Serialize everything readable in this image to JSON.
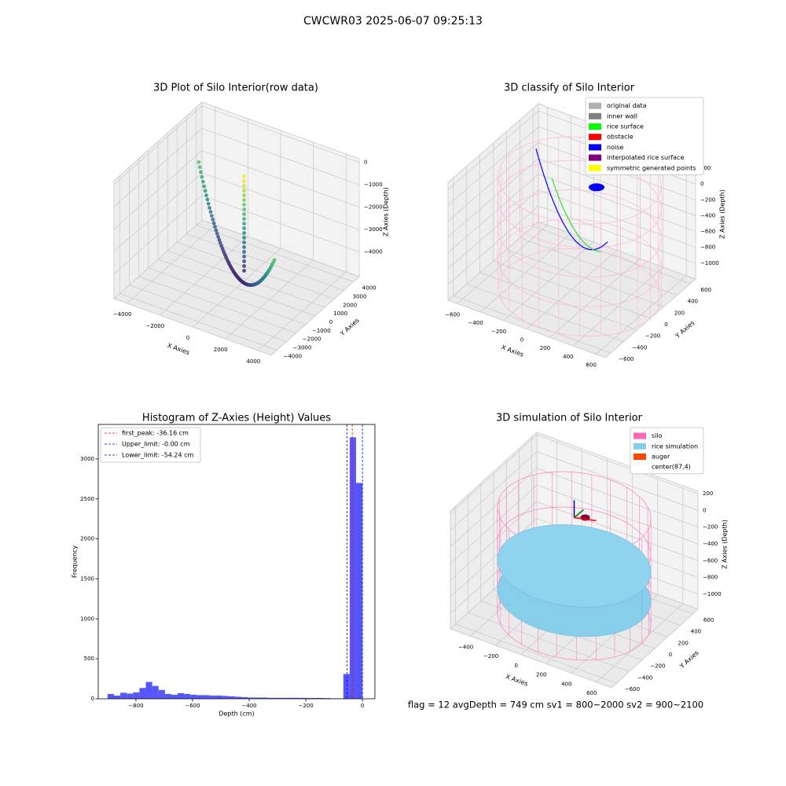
{
  "title": "CWCWR03 2025-06-07 09:25:13",
  "footer": "flag = 12  avgDepth = 749 cm  sv1 = 800~2000  sv2 = 900~2100",
  "chart_data": [
    {
      "type": "scatter3d",
      "title": "3D Plot of Silo Interior(row data)",
      "xlabel": "X Axies",
      "ylabel": "Y Axies",
      "zlabel": "Z Axies (Depth)",
      "xlim": [
        -4800,
        4800
      ],
      "ylim": [
        -4600,
        4600
      ],
      "zlim": [
        -5100,
        160
      ],
      "xticks": [
        {
          "value": -4000,
          "label": "−4000"
        },
        {
          "value": -2000,
          "label": "−2000"
        },
        0,
        2000,
        4000
      ],
      "yticks": [
        {
          "value": -4000,
          "label": "−4000"
        },
        {
          "value": -3000,
          "label": "−3000"
        },
        {
          "value": -2000,
          "label": "−2000"
        },
        {
          "value": -1000,
          "label": "−1000"
        },
        0,
        1000,
        2000,
        3000,
        4000
      ],
      "zticks": [
        {
          "value": -4000,
          "label": "−4000"
        },
        {
          "value": -3000,
          "label": "−3000"
        },
        {
          "value": -2000,
          "label": "−2000"
        },
        {
          "value": -1000,
          "label": "−1000"
        },
        0
      ]
    },
    {
      "type": "scatter3d",
      "title": "3D classify of Silo Interior",
      "xlabel": "X Axies",
      "ylabel": "Y Axies",
      "zlabel": "Z Axies (Depth)",
      "xlim": [
        -680,
        680
      ],
      "ylim": [
        -680,
        680
      ],
      "zlim": [
        -1200,
        290
      ],
      "xticks": [
        {
          "value": -600,
          "label": "−600"
        },
        {
          "value": -400,
          "label": "−400"
        },
        {
          "value": -200,
          "label": "−200"
        },
        0,
        200,
        400,
        600
      ],
      "yticks": [
        {
          "value": -600,
          "label": "−600"
        },
        {
          "value": -400,
          "label": "−400"
        },
        {
          "value": -200,
          "label": "−200"
        },
        0,
        200,
        400,
        600
      ],
      "zticks": [
        {
          "value": -1000,
          "label": "−1000"
        },
        {
          "value": -800,
          "label": "−800"
        },
        {
          "value": -600,
          "label": "−600"
        },
        {
          "value": -400,
          "label": "−400"
        },
        {
          "value": -200,
          "label": "−200"
        },
        0,
        200
      ],
      "series": [
        {
          "name": "original data",
          "color": "#b0b0b0"
        },
        {
          "name": "inner wall",
          "color": "#808080"
        },
        {
          "name": "rice surface",
          "color": "#00ff00"
        },
        {
          "name": "obstacle",
          "color": "#ff0000"
        },
        {
          "name": "noise",
          "color": "#0000ff"
        },
        {
          "name": "interpolated rice surface",
          "color": "#800080"
        },
        {
          "name": "symmetric generated points",
          "color": "#ffff00"
        }
      ]
    },
    {
      "type": "histogram",
      "title": "Histogram of Z-Axies (Height) Values",
      "xlabel": "Depth (cm)",
      "ylabel": "Frequency",
      "color": "#4d4dff",
      "bins": [
        -900,
        -877.5,
        -855,
        -832.5,
        -810,
        -787.5,
        -765,
        -742.5,
        -720,
        -697.5,
        -675,
        -652.5,
        -630,
        -607.5,
        -585,
        -562.5,
        -540,
        -517.5,
        -495,
        -472.5,
        -450,
        -427.5,
        -405,
        -382.5,
        -360,
        -337.5,
        -315,
        -292.5,
        -270,
        -247.5,
        -225,
        -202.5,
        -180,
        -157.5,
        -135,
        -112.5,
        -90,
        -67.5,
        -45,
        -22.5,
        0
      ],
      "values": [
        60,
        40,
        75,
        65,
        80,
        135,
        210,
        160,
        110,
        60,
        50,
        70,
        60,
        50,
        45,
        45,
        40,
        40,
        35,
        30,
        25,
        20,
        15,
        15,
        15,
        12,
        12,
        12,
        12,
        12,
        12,
        10,
        10,
        10,
        8,
        5,
        3,
        310,
        3270,
        2700
      ],
      "xlim": [
        -933,
        44
      ],
      "ylim": [
        0,
        3432
      ],
      "xticks": [
        {
          "value": -800,
          "label": "−800"
        },
        {
          "value": -600,
          "label": "−600"
        },
        {
          "value": -400,
          "label": "−400"
        },
        {
          "value": -200,
          "label": "−200"
        },
        0
      ],
      "yticks": [
        0,
        500,
        1000,
        1500,
        2000,
        2500,
        3000
      ],
      "lines": [
        {
          "name": "first_peak: -36.16 cm",
          "value": -36.16,
          "color": "#ff0000"
        },
        {
          "name": "Upper_limit: -0.00 cm",
          "value": 0,
          "color": "#0000ff"
        },
        {
          "name": "Lower_limit: -54.24 cm",
          "value": -54.24,
          "color": "#0000ff"
        }
      ]
    },
    {
      "type": "surface3d",
      "title": "3D simulation of Silo Interior",
      "xlabel": "X Axies",
      "ylabel": "Y Axies",
      "zlabel": "Z Axies (Depth)",
      "xlim": [
        -560,
        720
      ],
      "ylim": [
        -680,
        680
      ],
      "zlim": [
        -1180,
        230
      ],
      "xticks": [
        {
          "value": -400,
          "label": "−400"
        },
        {
          "value": -200,
          "label": "−200"
        },
        0,
        200,
        400,
        600
      ],
      "yticks": [
        {
          "value": -600,
          "label": "−600"
        },
        {
          "value": -400,
          "label": "−400"
        },
        {
          "value": -200,
          "label": "−200"
        },
        0,
        200,
        400,
        600
      ],
      "zticks": [
        {
          "value": -1000,
          "label": "−1000"
        },
        {
          "value": -800,
          "label": "−800"
        },
        {
          "value": -600,
          "label": "−600"
        },
        {
          "value": -400,
          "label": "−400"
        },
        {
          "value": -200,
          "label": "−200"
        },
        0,
        200
      ],
      "series": [
        {
          "name": "silo",
          "color": "#ff69b4"
        },
        {
          "name": "rice simulation",
          "color": "#87ceeb"
        },
        {
          "name": "auger",
          "color": "#ff4500"
        },
        {
          "name": "center(87,4)",
          "color": "#ffffff"
        }
      ]
    }
  ]
}
